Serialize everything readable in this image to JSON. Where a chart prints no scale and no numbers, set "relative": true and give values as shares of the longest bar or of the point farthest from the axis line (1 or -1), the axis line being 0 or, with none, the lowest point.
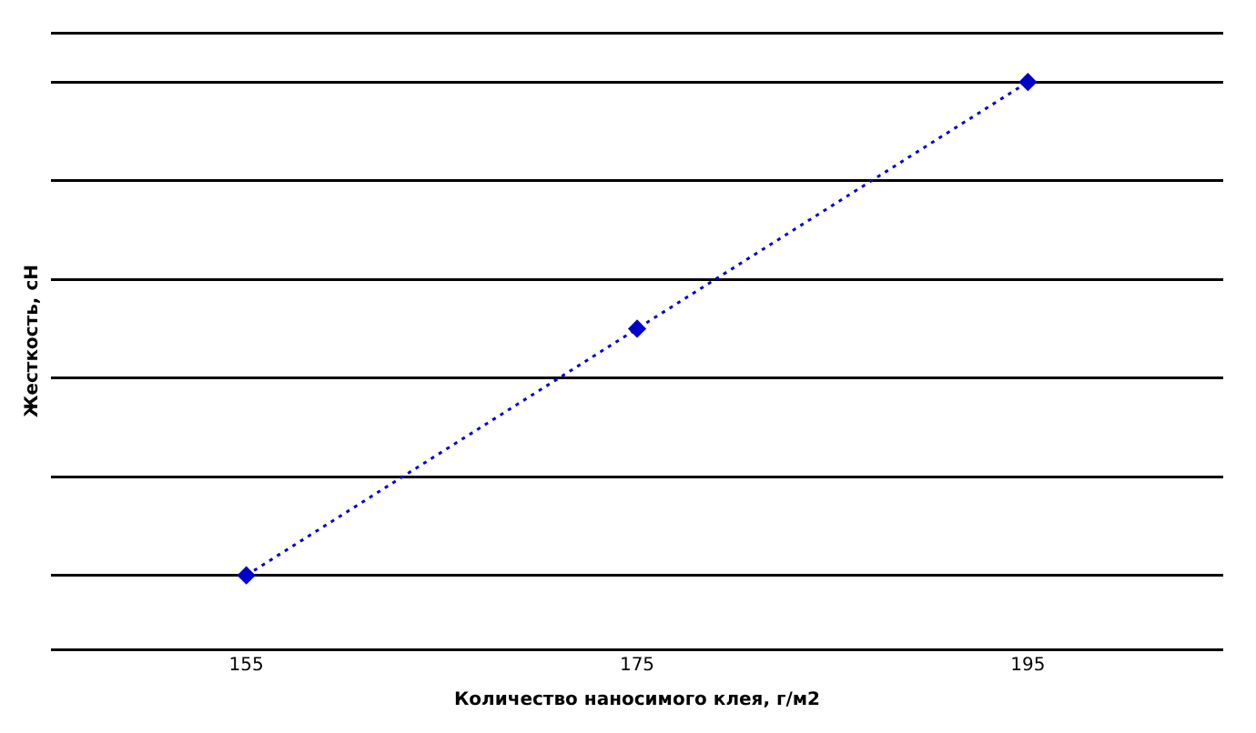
{
  "chart_data": {
    "type": "line",
    "relative": true,
    "xlabel": "Количество наносимого клея, г/м2",
    "ylabel": "Жесткость, сН",
    "categories": [
      "155",
      "175",
      "195"
    ],
    "series": [
      {
        "color": "#0000cc",
        "values": [
          0,
          0.5,
          1
        ]
      }
    ],
    "marker": "diamond",
    "line_style": "dotted",
    "grid": "y",
    "legend": false
  }
}
